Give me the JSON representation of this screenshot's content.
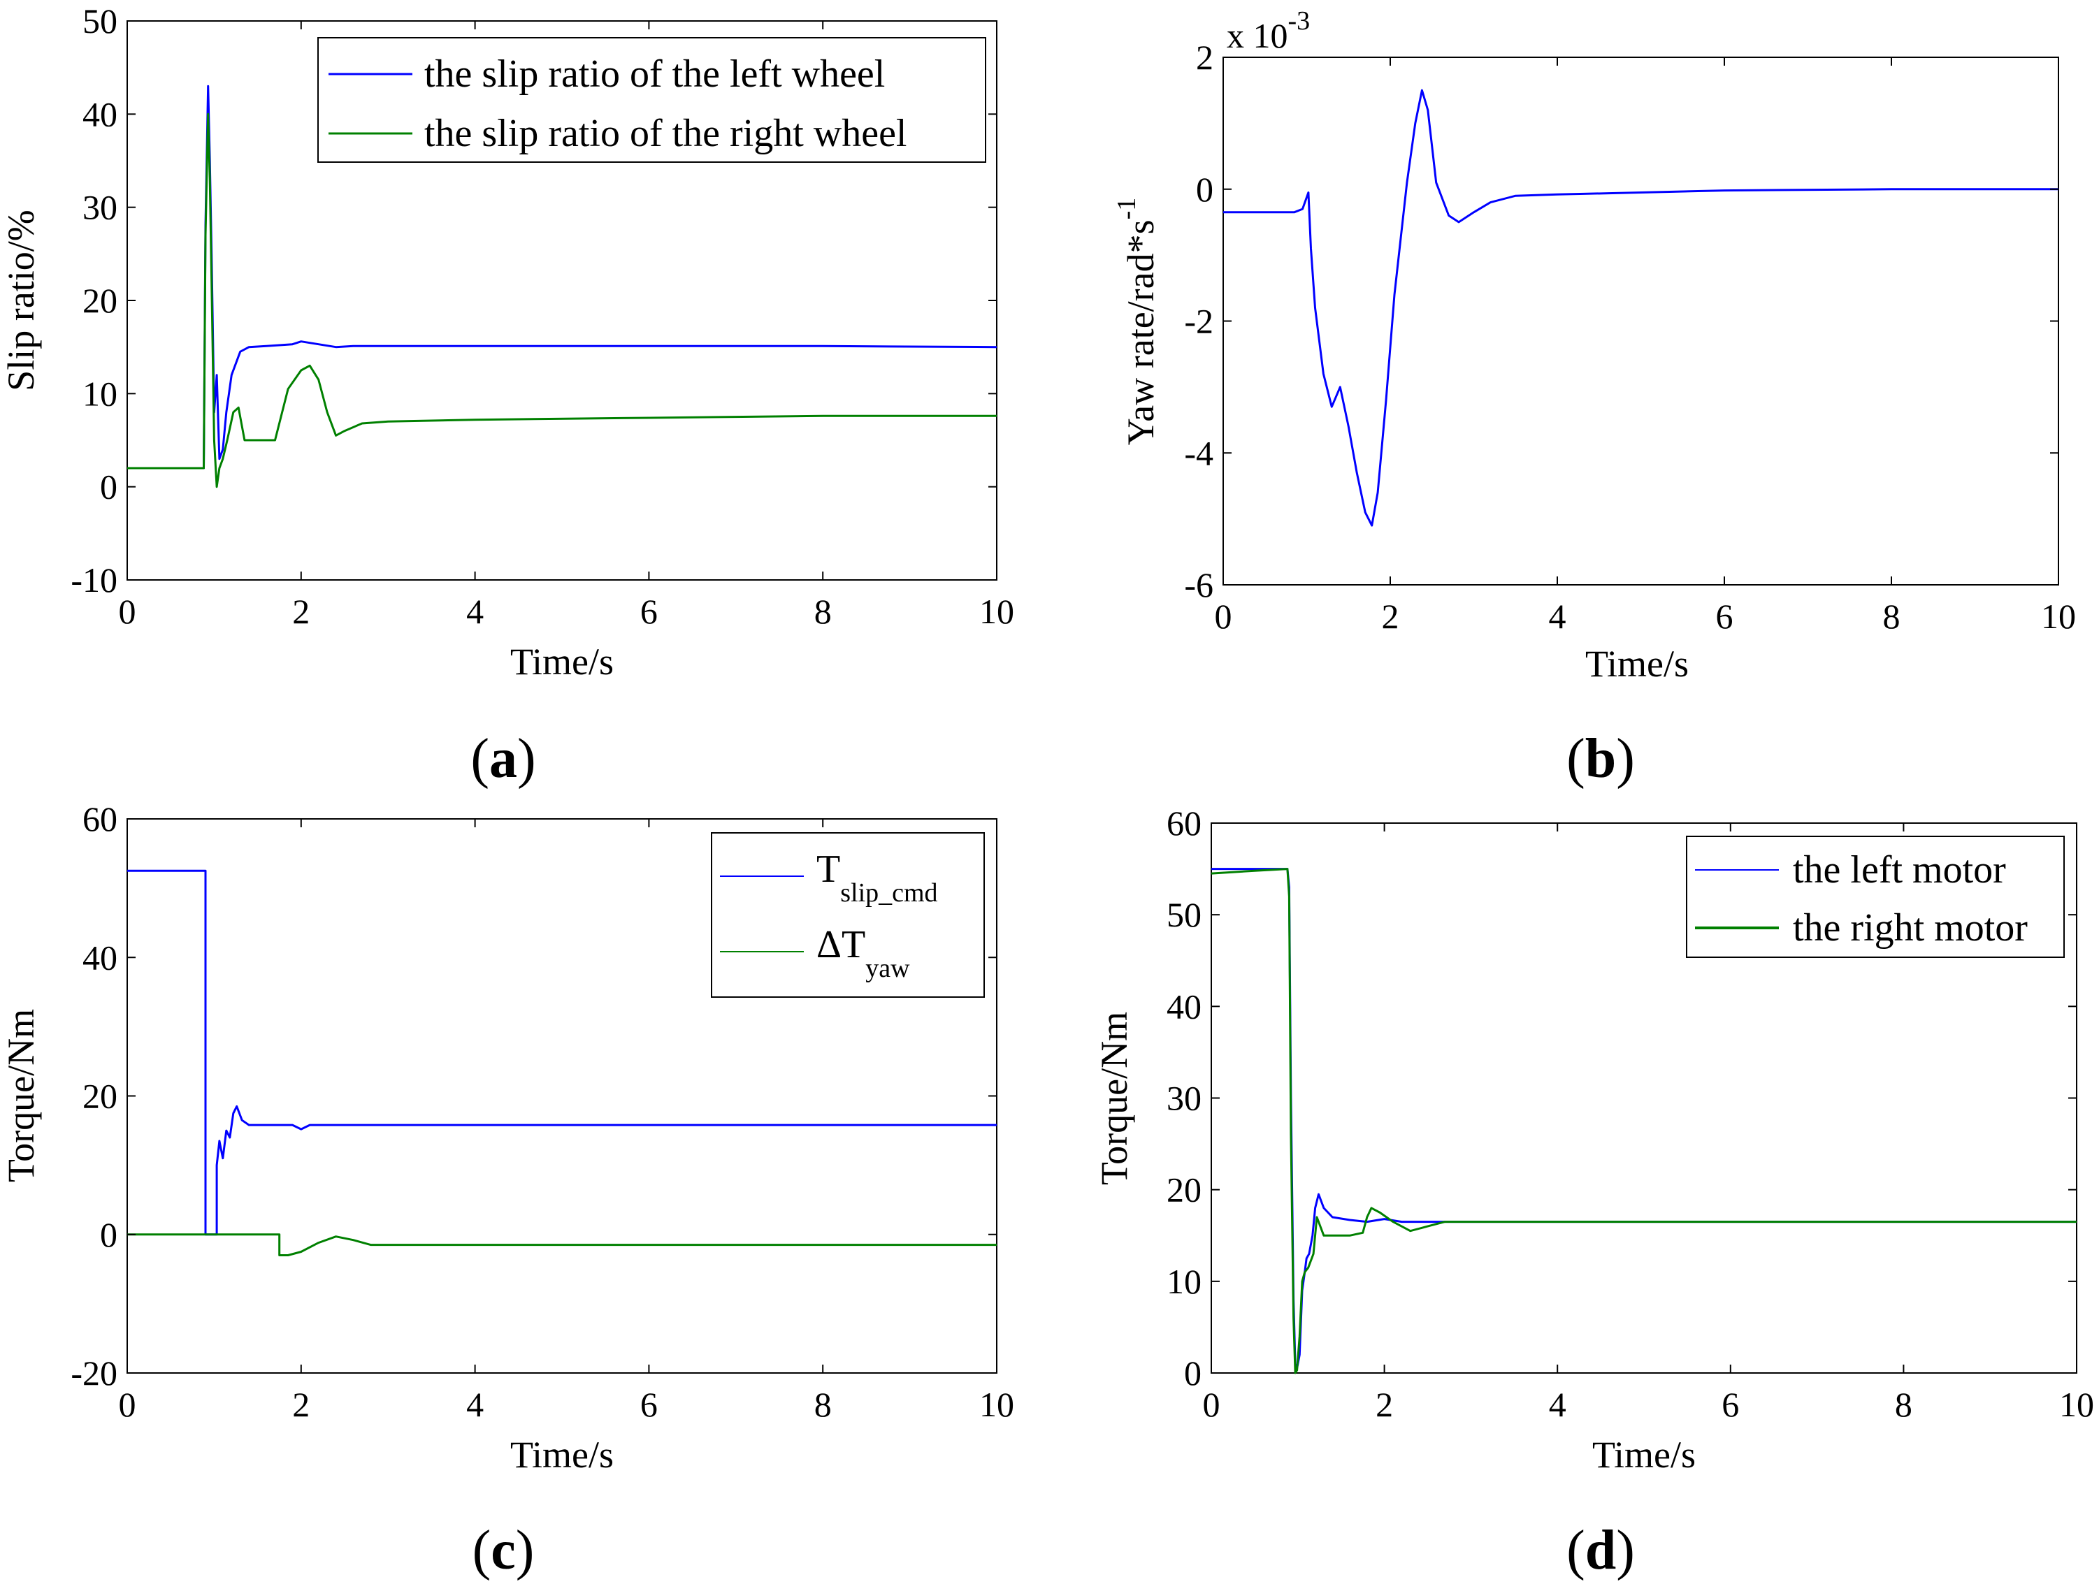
{
  "colors": {
    "left": "#0000ff",
    "right": "#008000",
    "axis": "#000000"
  },
  "chart_data": [
    {
      "id": "a",
      "type": "line",
      "panel_label": "a",
      "xlabel": "Time/s",
      "ylabel": "Slip ratio/%",
      "xlim": [
        0,
        10
      ],
      "ylim": [
        -10,
        50
      ],
      "xticks": [
        0,
        2,
        4,
        6,
        8,
        10
      ],
      "yticks": [
        -10,
        0,
        10,
        20,
        30,
        40,
        50
      ],
      "legend": {
        "position": "top-right",
        "entries": [
          {
            "label": "the slip ratio of the left wheel",
            "color": "#0000ff"
          },
          {
            "label": "the slip ratio of the right wheel",
            "color": "#008000"
          }
        ]
      },
      "series": [
        {
          "name": "the slip ratio of the left wheel",
          "color": "#0000ff",
          "x": [
            0,
            0.88,
            0.9,
            0.93,
            0.95,
            0.97,
            1.0,
            1.03,
            1.06,
            1.1,
            1.14,
            1.2,
            1.3,
            1.4,
            1.6,
            1.9,
            2.0,
            2.2,
            2.4,
            2.6,
            3.0,
            4,
            6,
            8,
            10
          ],
          "y": [
            2,
            2,
            28,
            43,
            35,
            25,
            8,
            12,
            3,
            4,
            8,
            12,
            14.5,
            15,
            15.1,
            15.3,
            15.6,
            15.3,
            15,
            15.1,
            15.1,
            15.1,
            15.1,
            15.1,
            15
          ]
        },
        {
          "name": "the slip ratio of the right wheel",
          "color": "#008000",
          "x": [
            0,
            0.88,
            0.9,
            0.93,
            0.95,
            0.97,
            1.0,
            1.03,
            1.06,
            1.1,
            1.15,
            1.22,
            1.28,
            1.35,
            1.45,
            1.7,
            1.85,
            2.0,
            2.1,
            2.2,
            2.3,
            2.4,
            2.5,
            2.7,
            3.0,
            4,
            6,
            8,
            10
          ],
          "y": [
            2,
            2,
            27,
            40,
            33,
            22,
            5,
            0,
            2,
            3,
            5,
            8,
            8.5,
            5,
            5,
            5,
            10.5,
            12.5,
            13,
            11.5,
            8,
            5.5,
            6,
            6.8,
            7,
            7.2,
            7.4,
            7.6,
            7.6
          ]
        }
      ]
    },
    {
      "id": "b",
      "type": "line",
      "panel_label": "b",
      "xlabel": "Time/s",
      "ylabel": "Yaw rate/rad*s",
      "ylabel_exponent": "-1",
      "y_multiplier_label": "x 10",
      "y_multiplier_exponent": "-3",
      "xlim": [
        0,
        10
      ],
      "ylim": [
        -6,
        2
      ],
      "xticks": [
        0,
        2,
        4,
        6,
        8,
        10
      ],
      "yticks": [
        -6,
        -4,
        -2,
        0,
        2
      ],
      "series": [
        {
          "name": "yaw rate",
          "color": "#0000ff",
          "x": [
            0,
            0.85,
            0.95,
            1.02,
            1.05,
            1.1,
            1.2,
            1.3,
            1.4,
            1.5,
            1.6,
            1.7,
            1.78,
            1.85,
            1.95,
            2.05,
            2.2,
            2.3,
            2.38,
            2.45,
            2.55,
            2.7,
            2.82,
            3.0,
            3.2,
            3.5,
            4,
            5,
            6,
            8,
            10
          ],
          "y": [
            -0.35,
            -0.35,
            -0.3,
            -0.05,
            -0.9,
            -1.8,
            -2.8,
            -3.3,
            -3.0,
            -3.6,
            -4.3,
            -4.9,
            -5.1,
            -4.6,
            -3.2,
            -1.6,
            0.1,
            1.0,
            1.5,
            1.2,
            0.1,
            -0.4,
            -0.5,
            -0.35,
            -0.2,
            -0.1,
            -0.08,
            -0.05,
            -0.02,
            0,
            0
          ]
        }
      ]
    },
    {
      "id": "c",
      "type": "line",
      "panel_label": "c",
      "xlabel": "Time/s",
      "ylabel": "Torque/Nm",
      "xlim": [
        0,
        10
      ],
      "ylim": [
        -20,
        60
      ],
      "xticks": [
        0,
        2,
        4,
        6,
        8,
        10
      ],
      "yticks": [
        -20,
        0,
        20,
        40,
        60
      ],
      "legend": {
        "position": "top-right",
        "entries": [
          {
            "label": "T",
            "subscript": "slip_cmd",
            "color": "#0000ff"
          },
          {
            "label": "ΔT",
            "subscript": "yaw",
            "color": "#008000"
          }
        ]
      },
      "series": [
        {
          "name": "T slip_cmd",
          "color": "#0000ff",
          "x": [
            0,
            0.9,
            0.9,
            1.03,
            1.03,
            1.06,
            1.1,
            1.14,
            1.18,
            1.22,
            1.26,
            1.32,
            1.4,
            1.6,
            1.9,
            2.0,
            2.1,
            3,
            4,
            6,
            8,
            10
          ],
          "y": [
            52.5,
            52.5,
            0,
            0,
            10,
            13.5,
            11,
            15,
            14,
            17.5,
            18.5,
            16.5,
            15.8,
            15.8,
            15.8,
            15.2,
            15.8,
            15.8,
            15.8,
            15.8,
            15.8,
            15.8
          ]
        },
        {
          "name": "ΔT yaw",
          "color": "#008000",
          "x": [
            0,
            1.75,
            1.75,
            1.85,
            2.0,
            2.2,
            2.4,
            2.6,
            2.8,
            3,
            4,
            6,
            8,
            10
          ],
          "y": [
            0,
            0,
            -3,
            -3,
            -2.5,
            -1.2,
            -0.3,
            -0.8,
            -1.5,
            -1.5,
            -1.5,
            -1.5,
            -1.5,
            -1.5
          ]
        }
      ]
    },
    {
      "id": "d",
      "type": "line",
      "panel_label": "d",
      "xlabel": "Time/s",
      "ylabel": "Torque/Nm",
      "xlim": [
        0,
        10
      ],
      "ylim": [
        0,
        60
      ],
      "xticks": [
        0,
        2,
        4,
        6,
        8,
        10
      ],
      "yticks": [
        0,
        10,
        20,
        30,
        40,
        50,
        60
      ],
      "legend": {
        "position": "top-right",
        "entries": [
          {
            "label": "the left motor",
            "color": "#0000ff"
          },
          {
            "label": "the right motor",
            "color": "#008000"
          }
        ]
      },
      "series": [
        {
          "name": "the left motor",
          "color": "#0000ff",
          "x": [
            0,
            0.5,
            0.88,
            0.9,
            0.92,
            0.95,
            0.97,
            0.99,
            1.02,
            1.05,
            1.08,
            1.1,
            1.13,
            1.17,
            1.2,
            1.24,
            1.3,
            1.4,
            1.6,
            1.8,
            2.0,
            2.2,
            2.5,
            3.0,
            4,
            6,
            8,
            10
          ],
          "y": [
            55,
            55,
            55,
            53,
            30,
            8,
            1,
            0.5,
            2,
            9,
            11,
            12.5,
            13,
            15,
            18,
            19.5,
            18,
            17,
            16.7,
            16.5,
            16.8,
            16.5,
            16.5,
            16.5,
            16.5,
            16.5,
            16.5,
            16.5
          ]
        },
        {
          "name": "the right motor",
          "color": "#008000",
          "x": [
            0,
            0.5,
            0.88,
            0.9,
            0.92,
            0.95,
            0.97,
            0.99,
            1.02,
            1.05,
            1.08,
            1.12,
            1.18,
            1.22,
            1.3,
            1.4,
            1.6,
            1.75,
            1.8,
            1.85,
            1.95,
            2.1,
            2.3,
            2.5,
            2.7,
            3.0,
            4,
            6,
            8,
            10
          ],
          "y": [
            54.5,
            54.8,
            55,
            52,
            26,
            6,
            0,
            0.3,
            4,
            10,
            11,
            11.5,
            13,
            17,
            15,
            15,
            15,
            15.3,
            17,
            18,
            17.5,
            16.5,
            15.5,
            16,
            16.5,
            16.5,
            16.5,
            16.5,
            16.5,
            16.5
          ]
        }
      ]
    }
  ]
}
